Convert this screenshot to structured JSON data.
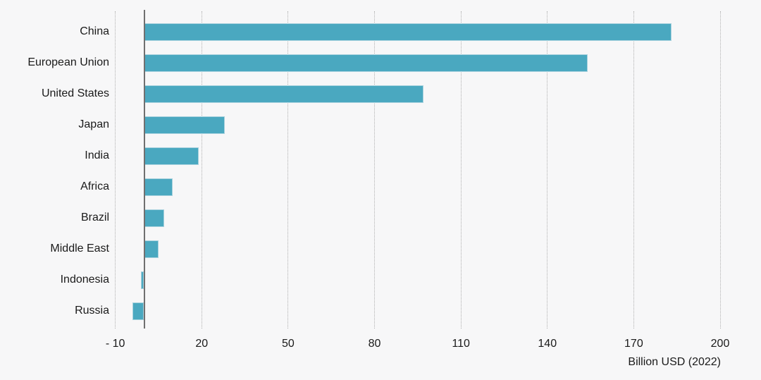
{
  "chart_data": {
    "type": "bar",
    "orientation": "horizontal",
    "title": "",
    "xlabel": "Billion USD (2022)",
    "ylabel": "",
    "categories": [
      "China",
      "European Union",
      "United States",
      "Japan",
      "India",
      "Africa",
      "Brazil",
      "Middle East",
      "Indonesia",
      "Russia"
    ],
    "values": [
      183,
      154,
      97,
      28,
      19,
      10,
      7,
      5,
      -1,
      -4
    ],
    "x_tick_values": [
      -10,
      20,
      50,
      80,
      110,
      140,
      170,
      200
    ],
    "x_tick_labels": [
      "- 10",
      "20",
      "50",
      "80",
      "110",
      "140",
      "170",
      "200"
    ],
    "xlim": [
      -12,
      214
    ],
    "grid": "vertical-dotted",
    "legend": "none",
    "colors": {
      "bar_fill": "#4aa8c0",
      "bar_edge": "#a9d2de",
      "gridline": "#b0b0b0",
      "zero_axis": "#707070",
      "text": "#1a1a1a",
      "background": "#f7f7f8"
    }
  }
}
